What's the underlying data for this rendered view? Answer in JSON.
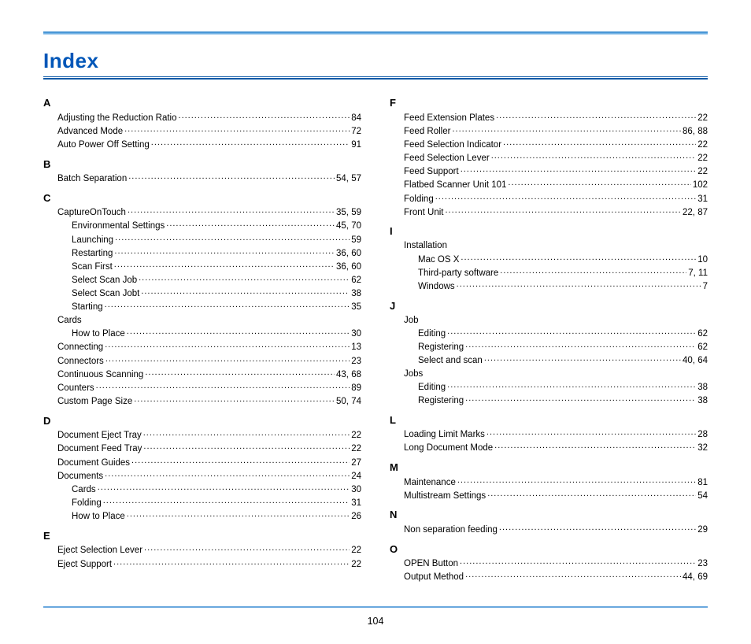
{
  "title": "Index",
  "page_number": "104",
  "left": [
    {
      "letter": "A",
      "items": [
        {
          "label": "Adjusting the Reduction Ratio",
          "page": "84",
          "level": 0
        },
        {
          "label": "Advanced Mode",
          "page": "72",
          "level": 0
        },
        {
          "label": "Auto Power Off Setting",
          "page": "91",
          "level": 0
        }
      ]
    },
    {
      "letter": "B",
      "items": [
        {
          "label": "Batch Separation",
          "page": "54, 57",
          "level": 0
        }
      ]
    },
    {
      "letter": "C",
      "items": [
        {
          "label": "CaptureOnTouch",
          "page": "35, 59",
          "level": 0
        },
        {
          "label": "Environmental Settings",
          "page": "45, 70",
          "level": 1
        },
        {
          "label": "Launching",
          "page": "59",
          "level": 1
        },
        {
          "label": "Restarting",
          "page": "36, 60",
          "level": 1
        },
        {
          "label": "Scan First",
          "page": "36, 60",
          "level": 1
        },
        {
          "label": "Select Scan Job",
          "page": "62",
          "level": 1
        },
        {
          "label": "Select Scan Jobt",
          "page": "38",
          "level": 1
        },
        {
          "label": "Starting",
          "page": "35",
          "level": 1
        },
        {
          "label": "Cards",
          "page": "",
          "level": 0
        },
        {
          "label": "How to Place",
          "page": "30",
          "level": 1
        },
        {
          "label": "Connecting",
          "page": "13",
          "level": 0
        },
        {
          "label": "Connectors",
          "page": "23",
          "level": 0
        },
        {
          "label": "Continuous Scanning",
          "page": "43, 68",
          "level": 0
        },
        {
          "label": "Counters",
          "page": "89",
          "level": 0
        },
        {
          "label": "Custom Page Size",
          "page": "50, 74",
          "level": 0
        }
      ]
    },
    {
      "letter": "D",
      "items": [
        {
          "label": "Document Eject Tray",
          "page": "22",
          "level": 0
        },
        {
          "label": "Document Feed Tray",
          "page": "22",
          "level": 0
        },
        {
          "label": "Document Guides",
          "page": "27",
          "level": 0
        },
        {
          "label": "Documents",
          "page": "24",
          "level": 0
        },
        {
          "label": "Cards",
          "page": "30",
          "level": 1
        },
        {
          "label": "Folding",
          "page": "31",
          "level": 1
        },
        {
          "label": "How to Place",
          "page": "26",
          "level": 1
        }
      ]
    },
    {
      "letter": "E",
      "items": [
        {
          "label": "Eject Selection Lever",
          "page": "22",
          "level": 0
        },
        {
          "label": "Eject Support",
          "page": "22",
          "level": 0
        }
      ]
    }
  ],
  "right": [
    {
      "letter": "F",
      "items": [
        {
          "label": "Feed Extension Plates",
          "page": "22",
          "level": 0
        },
        {
          "label": "Feed Roller",
          "page": "86, 88",
          "level": 0
        },
        {
          "label": "Feed Selection Indicator",
          "page": "22",
          "level": 0
        },
        {
          "label": "Feed Selection Lever",
          "page": "22",
          "level": 0
        },
        {
          "label": "Feed Support",
          "page": "22",
          "level": 0
        },
        {
          "label": "Flatbed Scanner Unit 101",
          "page": "102",
          "level": 0
        },
        {
          "label": "Folding",
          "page": "31",
          "level": 0
        },
        {
          "label": "Front Unit",
          "page": "22, 87",
          "level": 0
        }
      ]
    },
    {
      "letter": "I",
      "items": [
        {
          "label": "Installation",
          "page": "",
          "level": 0
        },
        {
          "label": "Mac OS X",
          "page": "10",
          "level": 1
        },
        {
          "label": "Third-party software",
          "page": "7, 11",
          "level": 1
        },
        {
          "label": "Windows",
          "page": "7",
          "level": 1
        }
      ]
    },
    {
      "letter": "J",
      "items": [
        {
          "label": "Job",
          "page": "",
          "level": 0
        },
        {
          "label": "Editing",
          "page": "62",
          "level": 1
        },
        {
          "label": "Registering",
          "page": "62",
          "level": 1
        },
        {
          "label": "Select and scan",
          "page": "40, 64",
          "level": 1
        },
        {
          "label": "Jobs",
          "page": "",
          "level": 0
        },
        {
          "label": "Editing",
          "page": "38",
          "level": 1
        },
        {
          "label": "Registering",
          "page": "38",
          "level": 1
        }
      ]
    },
    {
      "letter": "L",
      "items": [
        {
          "label": "Loading Limit Marks",
          "page": "28",
          "level": 0
        },
        {
          "label": "Long Document Mode",
          "page": "32",
          "level": 0
        }
      ]
    },
    {
      "letter": "M",
      "items": [
        {
          "label": "Maintenance",
          "page": "81",
          "level": 0
        },
        {
          "label": "Multistream Settings",
          "page": "54",
          "level": 0
        }
      ]
    },
    {
      "letter": "N",
      "items": [
        {
          "label": "Non separation feeding",
          "page": "29",
          "level": 0
        }
      ]
    },
    {
      "letter": "O",
      "items": [
        {
          "label": "OPEN Button",
          "page": "23",
          "level": 0
        },
        {
          "label": "Output Method",
          "page": "44, 69",
          "level": 0
        }
      ]
    }
  ]
}
